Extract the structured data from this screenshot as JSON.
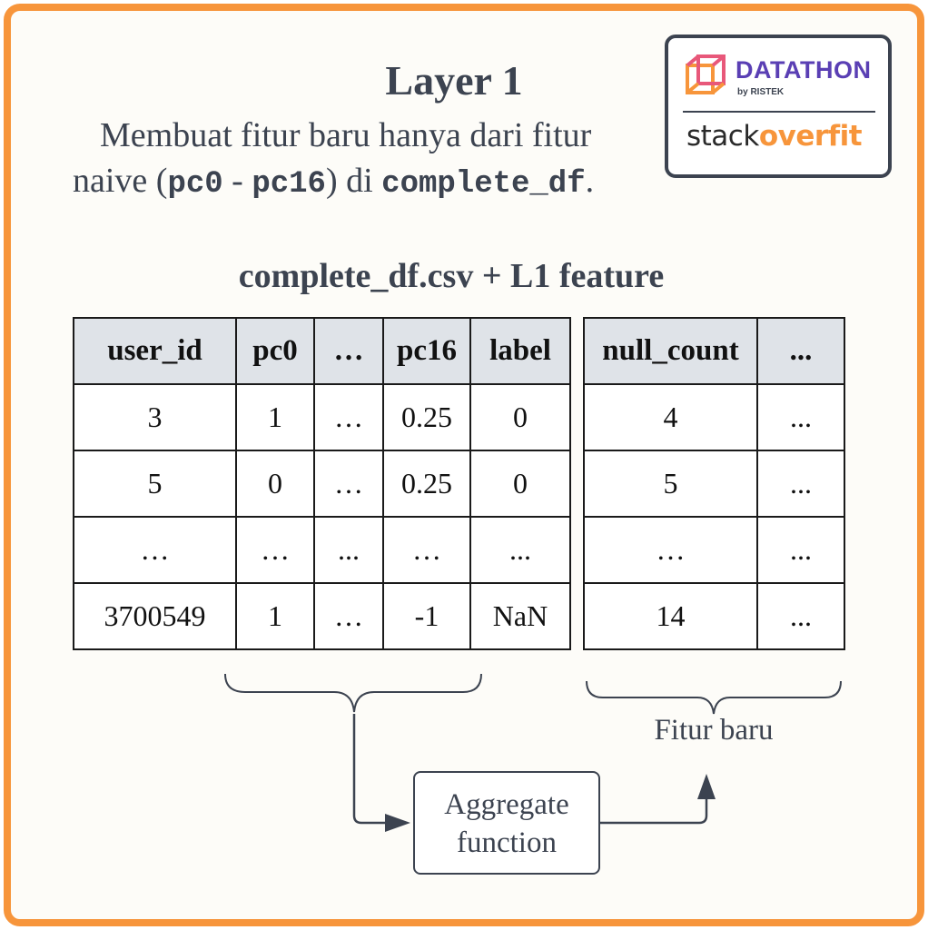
{
  "title": "Layer 1",
  "description": {
    "line1": "Membuat fitur baru  hanya dari fitur",
    "line2_prefix": "naive (",
    "code_start": "pc0",
    "dash": " - ",
    "code_end": "pc16",
    "mid": ") di ",
    "code_df": "complete_df",
    "end": "."
  },
  "logo": {
    "name": "DATATHON",
    "by": "by RISTEK",
    "team_left": "stack",
    "team_right": "overfit",
    "colors": {
      "purple": "#5a3fb4",
      "orange": "#f7953b",
      "pink": "#e8587a"
    }
  },
  "table_title": "complete_df.csv + L1 feature",
  "main_table": {
    "headers": [
      "user_id",
      "pc0",
      "…",
      "pc16",
      "label"
    ],
    "rows": [
      [
        "3",
        "1",
        "…",
        "0.25",
        "0"
      ],
      [
        "5",
        "0",
        "…",
        "0.25",
        "0"
      ],
      [
        "…",
        "…",
        "...",
        "…",
        "..."
      ],
      [
        "3700549",
        "1",
        "…",
        "-1",
        "NaN"
      ]
    ]
  },
  "feature_table": {
    "headers": [
      "null_count",
      "..."
    ],
    "rows": [
      [
        "4",
        "..."
      ],
      [
        "5",
        "..."
      ],
      [
        "…",
        "..."
      ],
      [
        "14",
        "..."
      ]
    ]
  },
  "aggregate": {
    "line1": "Aggregate",
    "line2": "function"
  },
  "new_feature_label": "Fitur baru",
  "colors": {
    "border": "#f7953b",
    "header_bg": "#dfe3e8",
    "text": "#3c4350"
  }
}
